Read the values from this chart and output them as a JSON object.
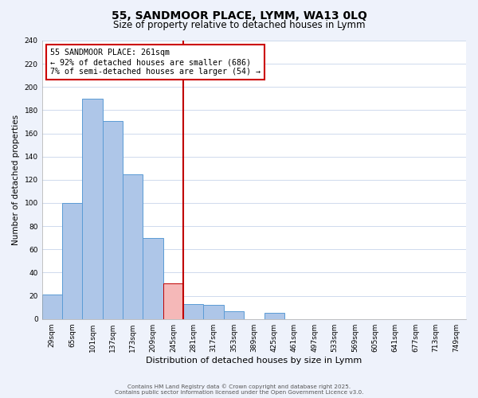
{
  "title": "55, SANDMOOR PLACE, LYMM, WA13 0LQ",
  "subtitle": "Size of property relative to detached houses in Lymm",
  "xlabel": "Distribution of detached houses by size in Lymm",
  "ylabel": "Number of detached properties",
  "bin_labels": [
    "29sqm",
    "65sqm",
    "101sqm",
    "137sqm",
    "173sqm",
    "209sqm",
    "245sqm",
    "281sqm",
    "317sqm",
    "353sqm",
    "389sqm",
    "425sqm",
    "461sqm",
    "497sqm",
    "533sqm",
    "569sqm",
    "605sqm",
    "641sqm",
    "677sqm",
    "713sqm",
    "749sqm"
  ],
  "bar_heights": [
    21,
    100,
    190,
    171,
    125,
    70,
    31,
    13,
    12,
    7,
    0,
    5,
    0,
    0,
    0,
    0,
    0,
    0,
    0,
    0,
    0
  ],
  "bar_color": "#aec6e8",
  "bar_edge_color": "#5b9bd5",
  "highlight_bar_color": "#f5b8b8",
  "highlight_bar_edge_color": "#c00000",
  "highlight_bar_index": 6,
  "vline_color": "#c00000",
  "ylim": [
    0,
    240
  ],
  "yticks": [
    0,
    20,
    40,
    60,
    80,
    100,
    120,
    140,
    160,
    180,
    200,
    220,
    240
  ],
  "annotation_title": "55 SANDMOOR PLACE: 261sqm",
  "annotation_line1": "← 92% of detached houses are smaller (686)",
  "annotation_line2": "7% of semi-detached houses are larger (54) →",
  "footer1": "Contains HM Land Registry data © Crown copyright and database right 2025.",
  "footer2": "Contains public sector information licensed under the Open Government Licence v3.0.",
  "background_color": "#eef2fb",
  "plot_bg_color": "#ffffff",
  "grid_color": "#c8d4ea"
}
